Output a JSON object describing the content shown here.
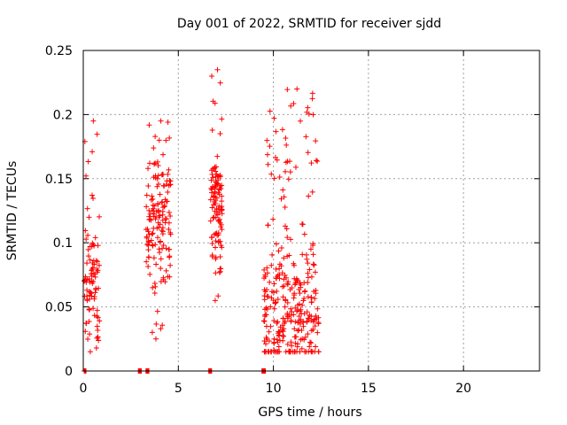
{
  "chart_data": {
    "type": "scatter",
    "title": "Day 001 of 2022, SRMTID for receiver sjdd",
    "xlabel": "GPS time / hours",
    "ylabel": "SRMTID / TECUs",
    "xlim": [
      0,
      24
    ],
    "ylim": [
      0,
      0.25
    ],
    "xticks": [
      0,
      5,
      10,
      15,
      20
    ],
    "xtick_labels": [
      "0",
      "5",
      "10",
      "15",
      "20"
    ],
    "yticks": [
      0,
      0.05,
      0.1,
      0.15,
      0.2,
      0.25
    ],
    "ytick_labels": [
      "0",
      "0.05",
      "0.1",
      "0.15",
      "0.2",
      "0.25"
    ],
    "grid": true,
    "marker": "plus",
    "color": "#ff0000",
    "zero_segments": [
      [
        0.05,
        0.15
      ],
      [
        2.9,
        3.05
      ],
      [
        3.3,
        3.45
      ],
      [
        6.6,
        6.75
      ],
      [
        9.4,
        9.6
      ]
    ],
    "clusters": [
      {
        "x": [
          0.05,
          0.85
        ],
        "y": [
          0.015,
          0.195
        ],
        "n": 90,
        "mode": 0.07
      },
      {
        "x": [
          3.3,
          4.6
        ],
        "y": [
          0.025,
          0.195
        ],
        "n": 150,
        "mode": 0.12
      },
      {
        "x": [
          6.7,
          7.3
        ],
        "y": [
          0.055,
          0.235
        ],
        "n": 110,
        "mode": 0.13
      },
      {
        "x": [
          9.5,
          12.4
        ],
        "y": [
          0.015,
          0.22
        ],
        "n": 320,
        "mode": 0.045
      }
    ]
  }
}
